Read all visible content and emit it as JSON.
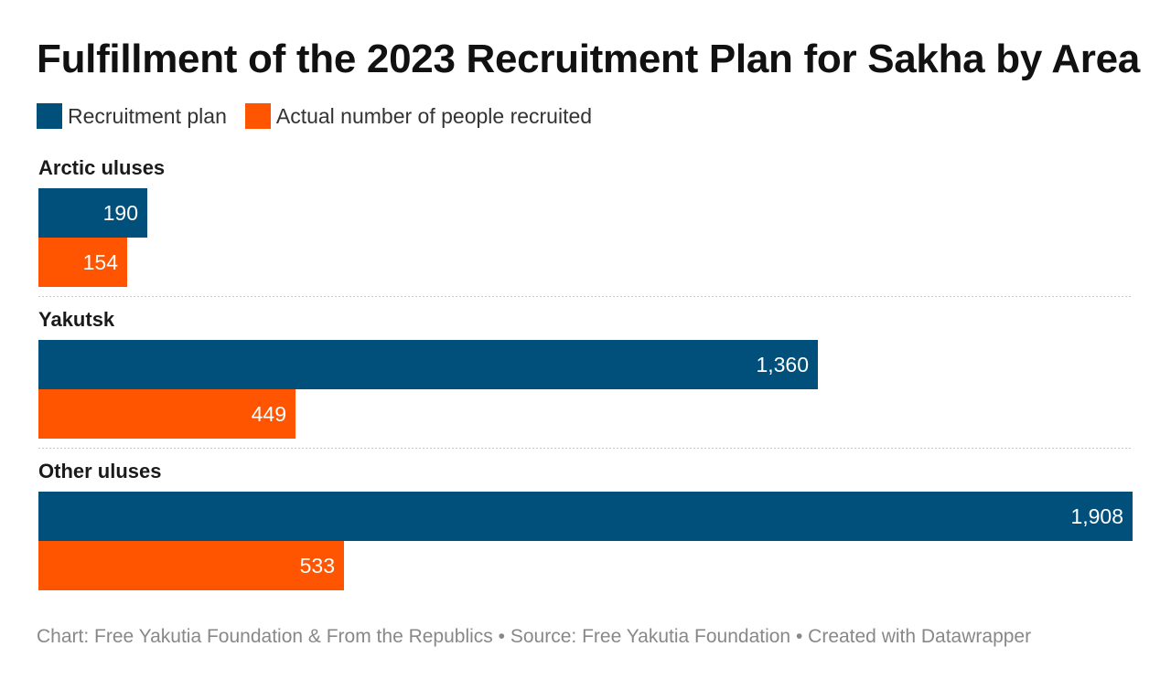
{
  "title": "Fulfillment of the 2023 Recruitment Plan for Sakha by Area",
  "legend": [
    {
      "label": "Recruitment plan",
      "color": "#00507b"
    },
    {
      "label": "Actual number of people recruited",
      "color": "#ff5400"
    }
  ],
  "footer": {
    "credit": "Chart: Free Yakutia Foundation & From the Republics",
    "separator": "•",
    "source": "Source: Free Yakutia Foundation",
    "created_with": "Created with Datawrapper"
  },
  "chart_data": {
    "type": "bar",
    "orientation": "horizontal",
    "grouped": true,
    "title": "Fulfillment of the 2023 Recruitment Plan for Sakha by Area",
    "categories": [
      "Arctic uluses",
      "Yakutsk",
      "Other uluses"
    ],
    "series": [
      {
        "name": "Recruitment plan",
        "color": "#00507b",
        "values": [
          190,
          1360,
          1908
        ],
        "labels": [
          "190",
          "1,360",
          "1,908"
        ]
      },
      {
        "name": "Actual number of people recruited",
        "color": "#ff5400",
        "values": [
          154,
          449,
          533
        ],
        "labels": [
          "154",
          "449",
          "533"
        ]
      }
    ],
    "xlim": [
      0,
      1908
    ],
    "grid": false,
    "legend_position": "top-left",
    "value_labels": "inside-end"
  }
}
